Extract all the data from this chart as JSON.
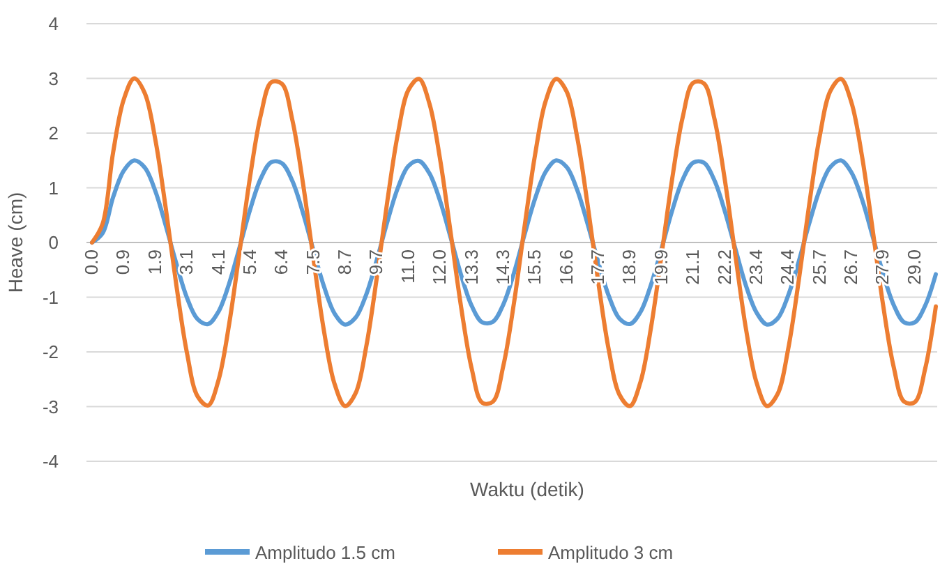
{
  "chart_data": {
    "type": "line",
    "xlabel": "Waktu (detik)",
    "ylabel": "Heave (cm)",
    "categories": [
      "0.0",
      null,
      null,
      "0.9",
      null,
      null,
      "1.9",
      null,
      null,
      "3.1",
      null,
      null,
      "4.1",
      null,
      null,
      "5.4",
      null,
      null,
      "6.4",
      null,
      null,
      "7.5",
      null,
      null,
      "8.7",
      null,
      null,
      "9.7",
      null,
      null,
      "11.0",
      null,
      null,
      "12.0",
      null,
      null,
      "13.3",
      null,
      null,
      "14.3",
      null,
      null,
      "15.5",
      null,
      null,
      "16.6",
      null,
      null,
      "17.7",
      null,
      null,
      "18.9",
      null,
      null,
      "19.9",
      null,
      null,
      "21.1",
      null,
      null,
      "22.2",
      null,
      null,
      "23.4",
      null,
      null,
      "24.4",
      null,
      null,
      "25.7",
      null,
      null,
      "26.7",
      null,
      null,
      "27.9",
      null,
      null,
      "29.0",
      null,
      null
    ],
    "series": [
      {
        "name": "Amplitudo 1.5 cm",
        "color": "#5b9bd5",
        "values": [
          0,
          0.17,
          0.83,
          1.31,
          1.5,
          1.37,
          0.94,
          0.3,
          -0.39,
          -1.01,
          -1.4,
          -1.49,
          -1.26,
          -0.75,
          -0.08,
          0.61,
          1.17,
          1.47,
          1.45,
          1.12,
          0.54,
          -0.15,
          -0.81,
          -1.3,
          -1.5,
          -1.37,
          -0.95,
          -0.32,
          0.38,
          1.0,
          1.4,
          1.49,
          1.26,
          0.76,
          0.09,
          -0.6,
          -1.16,
          -1.46,
          -1.45,
          -1.13,
          -0.56,
          0.14,
          0.8,
          1.29,
          1.5,
          1.38,
          0.96,
          0.33,
          -0.36,
          -0.98,
          -1.39,
          -1.49,
          -1.27,
          -0.77,
          -0.11,
          0.58,
          1.15,
          1.46,
          1.46,
          1.14,
          0.57,
          -0.12,
          -0.79,
          -1.28,
          -1.5,
          -1.39,
          -0.97,
          -0.35,
          0.35,
          0.97,
          1.38,
          1.5,
          1.28,
          0.79,
          0.12,
          -0.57,
          -1.14,
          -1.46,
          -1.46,
          -1.15,
          -0.58
        ]
      },
      {
        "name": "Amplitudo 3 cm",
        "color": "#ed7d31",
        "values": [
          0,
          0.34,
          1.65,
          2.61,
          3.0,
          2.73,
          1.88,
          0.61,
          -0.79,
          -2.02,
          -2.81,
          -2.98,
          -2.51,
          -1.49,
          -0.15,
          1.22,
          2.33,
          2.93,
          2.9,
          2.23,
          1.08,
          -0.31,
          -1.63,
          -2.59,
          -2.99,
          -2.75,
          -1.9,
          -0.64,
          0.76,
          1.99,
          2.79,
          2.99,
          2.53,
          1.52,
          0.18,
          -1.19,
          -2.31,
          -2.93,
          -2.91,
          -2.25,
          -1.11,
          0.28,
          1.6,
          2.58,
          2.99,
          2.76,
          1.92,
          0.67,
          -0.73,
          -1.97,
          -2.78,
          -2.99,
          -2.55,
          -1.55,
          -0.22,
          1.16,
          2.29,
          2.92,
          2.91,
          2.27,
          1.14,
          -0.24,
          -1.58,
          -2.56,
          -2.99,
          -2.77,
          -1.95,
          -0.7,
          0.7,
          1.95,
          2.77,
          2.99,
          2.56,
          1.58,
          0.25,
          -1.14,
          -2.27,
          -2.91,
          -2.92,
          -2.3,
          -1.17
        ]
      }
    ],
    "ylim": [
      -4,
      4
    ],
    "yticks": [
      -4,
      -3,
      -2,
      -1,
      0,
      1,
      2,
      3,
      4
    ],
    "grid": "y",
    "legend": "bottom",
    "marker": "none",
    "line_style": "solid"
  }
}
